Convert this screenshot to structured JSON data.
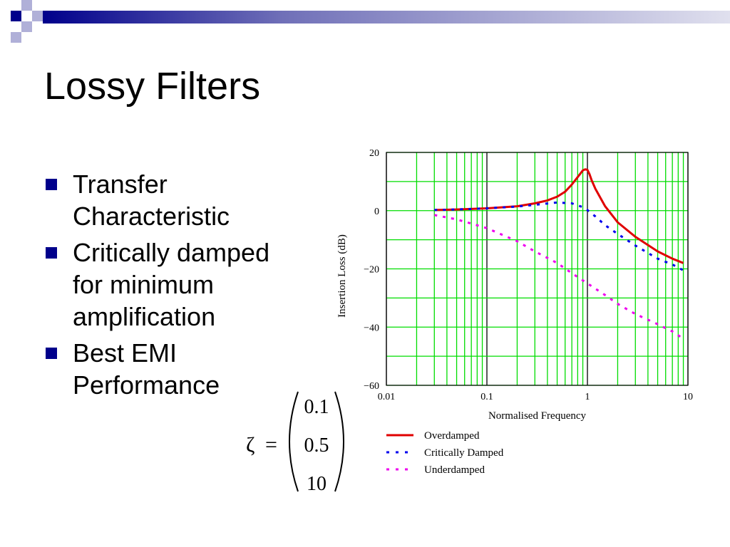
{
  "slide": {
    "title": "Lossy Filters",
    "accent_color": "#00008b",
    "bullets": [
      {
        "text": "Transfer\nCharacteristic"
      },
      {
        "text": "Critically damped\nfor minimum\namplification"
      },
      {
        "text": "Best EMI\nPerformance"
      }
    ]
  },
  "equation": {
    "symbol": "ζ",
    "equals": "=",
    "values": [
      "0.1",
      "0.5",
      "10"
    ]
  },
  "chart_data": {
    "type": "line",
    "xlabel": "Normalised Frequency",
    "ylabel": "Insertion Loss (dB)",
    "xscale": "log",
    "xlim": [
      0.01,
      10
    ],
    "ylim": [
      -60,
      20
    ],
    "x_ticks": [
      0.01,
      0.1,
      1,
      10
    ],
    "x_tick_labels": [
      "0.01",
      "0.1",
      "1",
      "10"
    ],
    "y_ticks": [
      20,
      0,
      -20,
      -40,
      -60
    ],
    "y_tick_labels": [
      "20",
      "0",
      "−20",
      "−40",
      "−60"
    ],
    "grid": true,
    "grid_color": "#00dd00",
    "legend_position": "below",
    "series": [
      {
        "name": "Overdamped",
        "color": "#e00000",
        "style": "solid",
        "x": [
          0.03,
          0.05,
          0.1,
          0.2,
          0.3,
          0.4,
          0.5,
          0.6,
          0.7,
          0.8,
          0.9,
          0.95,
          1.0,
          1.05,
          1.1,
          1.2,
          1.5,
          2,
          3,
          5,
          7,
          9
        ],
        "y": [
          0.2,
          0.4,
          0.8,
          1.5,
          2.5,
          3.5,
          4.8,
          6.5,
          9,
          11.5,
          13.8,
          14.2,
          14.0,
          12.5,
          10.5,
          7.5,
          1.5,
          -4,
          -9,
          -14,
          -16.5,
          -18
        ]
      },
      {
        "name": "Critically Damped",
        "color": "#0000ee",
        "style": "dotted",
        "x": [
          0.03,
          0.05,
          0.1,
          0.2,
          0.3,
          0.5,
          0.7,
          0.9,
          1.0,
          1.2,
          1.5,
          2,
          3,
          5,
          7,
          9
        ],
        "y": [
          0.2,
          0.4,
          0.8,
          1.4,
          2.0,
          2.8,
          2.5,
          1.2,
          0.2,
          -2,
          -5,
          -8,
          -12,
          -16.5,
          -18.5,
          -20.5
        ]
      },
      {
        "name": "Underdamped",
        "color": "#ee00ee",
        "style": "dotted",
        "x": [
          0.03,
          0.05,
          0.1,
          0.2,
          0.3,
          0.5,
          0.7,
          1.0,
          1.5,
          2,
          3,
          5,
          7,
          9
        ],
        "y": [
          -1.5,
          -3,
          -6,
          -10.5,
          -14,
          -18,
          -21.5,
          -25,
          -29,
          -32,
          -35.5,
          -39,
          -41.5,
          -44
        ]
      }
    ]
  }
}
